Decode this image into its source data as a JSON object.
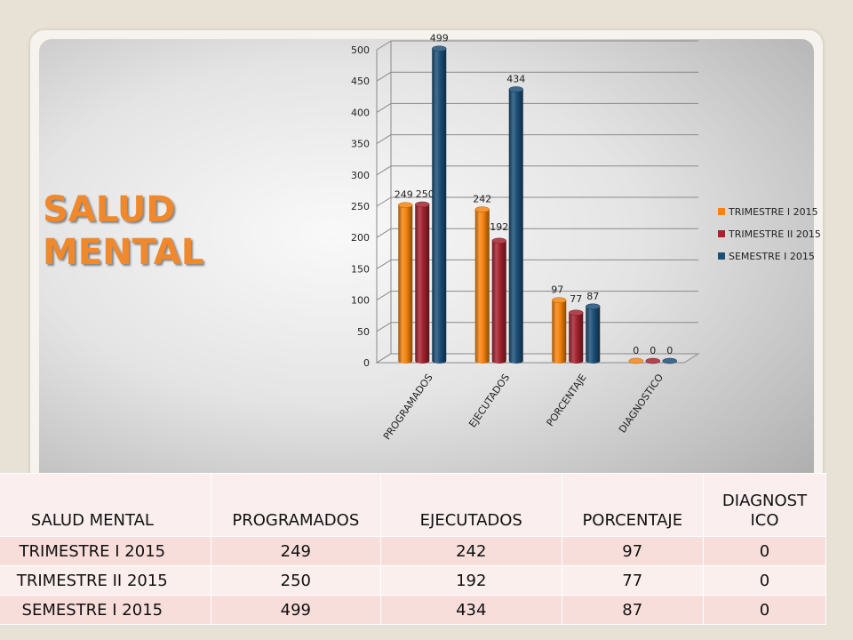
{
  "title_line1": "SALUD",
  "title_line2": "MENTAL",
  "chart_data": {
    "type": "bar",
    "categories": [
      "PROGRAMADOS",
      "EJECUTADOS",
      "PORCENTAJE",
      "DIAGNOSTICO"
    ],
    "series": [
      {
        "name": "TRIMESTRE I 2015",
        "values": [
          249,
          242,
          97,
          0
        ],
        "color": "#f7840f"
      },
      {
        "name": "TRIMESTRE II 2015",
        "values": [
          250,
          192,
          77,
          0
        ],
        "color": "#a3232e"
      },
      {
        "name": "SEMESTRE I 2015",
        "values": [
          499,
          434,
          87,
          0
        ],
        "color": "#1c4f78"
      }
    ],
    "y_ticks": [
      "0",
      "50",
      "100",
      "150",
      "200",
      "250",
      "300",
      "350",
      "400",
      "450",
      "500"
    ],
    "ylim": [
      0,
      500
    ],
    "grid": true,
    "legend_position": "right",
    "style": "3d-cylinder"
  },
  "table": {
    "headers": [
      "SALUD MENTAL",
      "PROGRAMADOS",
      "EJECUTADOS",
      "PORCENTAJE",
      "DIAGNOSTICO"
    ],
    "diagnostico_header_line1": "DIAGNOST",
    "diagnostico_header_line2": "ICO",
    "rows": [
      [
        "TRIMESTRE I 2015",
        "249",
        "242",
        "97",
        "0"
      ],
      [
        "TRIMESTRE II 2015",
        "250",
        "192",
        "77",
        "0"
      ],
      [
        "SEMESTRE I 2015",
        "499",
        "434",
        "87",
        "0"
      ]
    ]
  }
}
